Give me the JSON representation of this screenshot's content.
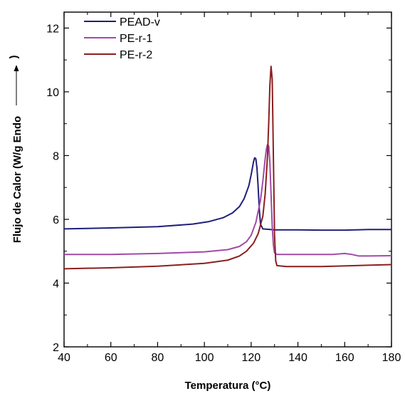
{
  "chart_data": {
    "type": "line",
    "xlabel": "Temperatura (°C)",
    "ylabel": "Flujo de Calor (W/g  Endo",
    "xlim": [
      40,
      180
    ],
    "ylim": [
      2,
      12.5
    ],
    "xticks": [
      40,
      60,
      80,
      100,
      120,
      140,
      160,
      180
    ],
    "yticks": [
      2,
      4,
      6,
      8,
      10,
      12
    ],
    "grid": false,
    "legend": "top-left",
    "series": [
      {
        "name": "PEAD-v",
        "color": "#1f1f7a",
        "x": [
          40,
          60,
          80,
          95,
          102,
          108,
          112,
          115,
          117,
          119,
          120,
          121,
          121.5,
          122,
          122.5,
          123,
          123.5,
          124,
          125,
          130,
          140,
          150,
          160,
          170,
          180
        ],
        "y": [
          5.7,
          5.73,
          5.77,
          5.85,
          5.93,
          6.05,
          6.2,
          6.4,
          6.65,
          7.05,
          7.4,
          7.8,
          7.93,
          7.9,
          7.6,
          7.0,
          6.3,
          5.85,
          5.7,
          5.67,
          5.67,
          5.66,
          5.66,
          5.68,
          5.68
        ]
      },
      {
        "name": "PE-r-1",
        "color": "#a04aa8",
        "x": [
          40,
          60,
          80,
          100,
          110,
          115,
          118,
          120,
          122,
          124,
          125,
          126,
          126.5,
          127,
          127.5,
          128,
          128.5,
          129,
          129.5,
          130,
          131,
          135,
          145,
          155,
          160,
          163,
          166,
          170,
          180
        ],
        "y": [
          4.9,
          4.9,
          4.93,
          4.98,
          5.05,
          5.15,
          5.3,
          5.5,
          5.9,
          6.6,
          7.2,
          7.9,
          8.2,
          8.35,
          8.3,
          7.8,
          6.8,
          5.8,
          5.2,
          4.95,
          4.9,
          4.9,
          4.9,
          4.9,
          4.93,
          4.9,
          4.85,
          4.85,
          4.86
        ]
      },
      {
        "name": "PE-r-2",
        "color": "#8a1f1f",
        "x": [
          40,
          60,
          80,
          100,
          110,
          115,
          118,
          121,
          123,
          125,
          126,
          127,
          127.5,
          128,
          128.5,
          129,
          129.3,
          129.7,
          130,
          130.5,
          131,
          135,
          150,
          165,
          180
        ],
        "y": [
          4.45,
          4.48,
          4.53,
          4.62,
          4.72,
          4.85,
          5.0,
          5.25,
          5.55,
          6.1,
          6.8,
          8.0,
          9.0,
          10.2,
          10.8,
          10.4,
          9.0,
          7.0,
          5.5,
          4.7,
          4.55,
          4.52,
          4.52,
          4.55,
          4.58
        ]
      }
    ]
  }
}
